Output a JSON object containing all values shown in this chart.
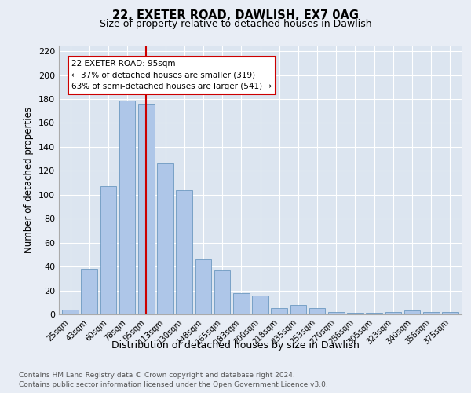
{
  "title1": "22, EXETER ROAD, DAWLISH, EX7 0AG",
  "title2": "Size of property relative to detached houses in Dawlish",
  "xlabel": "Distribution of detached houses by size in Dawlish",
  "ylabel": "Number of detached properties",
  "categories": [
    "25sqm",
    "43sqm",
    "60sqm",
    "78sqm",
    "95sqm",
    "113sqm",
    "130sqm",
    "148sqm",
    "165sqm",
    "183sqm",
    "200sqm",
    "218sqm",
    "235sqm",
    "253sqm",
    "270sqm",
    "288sqm",
    "305sqm",
    "323sqm",
    "340sqm",
    "358sqm",
    "375sqm"
  ],
  "values": [
    4,
    38,
    107,
    179,
    176,
    126,
    104,
    46,
    37,
    18,
    16,
    5,
    8,
    5,
    2,
    1,
    1,
    2,
    3,
    2,
    2
  ],
  "bar_color": "#aec6e8",
  "bar_edge_color": "#5b8db8",
  "vline_x_index": 4,
  "vline_color": "#cc0000",
  "annotation_line1": "22 EXETER ROAD: 95sqm",
  "annotation_line2": "← 37% of detached houses are smaller (319)",
  "annotation_line3": "63% of semi-detached houses are larger (541) →",
  "box_color": "#cc0000",
  "ylim": [
    0,
    225
  ],
  "yticks": [
    0,
    20,
    40,
    60,
    80,
    100,
    120,
    140,
    160,
    180,
    200,
    220
  ],
  "footer1": "Contains HM Land Registry data © Crown copyright and database right 2024.",
  "footer2": "Contains public sector information licensed under the Open Government Licence v3.0.",
  "bg_color": "#e8edf5",
  "plot_bg_color": "#dce5f0"
}
